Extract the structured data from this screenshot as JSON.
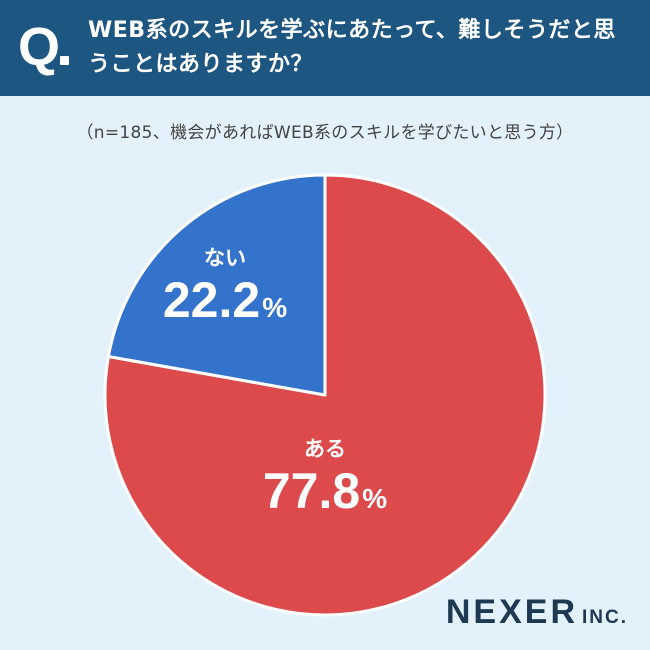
{
  "header": {
    "q_mark": "Q",
    "question": "WEB系のスキルを学ぶにあたって、難しそうだと思うことはありますか？"
  },
  "subtitle": "（n=185、機会があればWEB系のスキルを学びたいと思う方）",
  "chart_data": {
    "type": "pie",
    "title": "WEB系のスキルを学ぶにあたって、難しそうだと思うことはありますか？",
    "unit": "%",
    "slices": [
      {
        "label": "ある",
        "value": 77.8,
        "value_text": "77.8",
        "color": "#dc4a4c"
      },
      {
        "label": "ない",
        "value": 22.2,
        "value_text": "22.2",
        "color": "#3473cc"
      }
    ]
  },
  "logo": {
    "main": "NEXER",
    "sub": "INC."
  }
}
